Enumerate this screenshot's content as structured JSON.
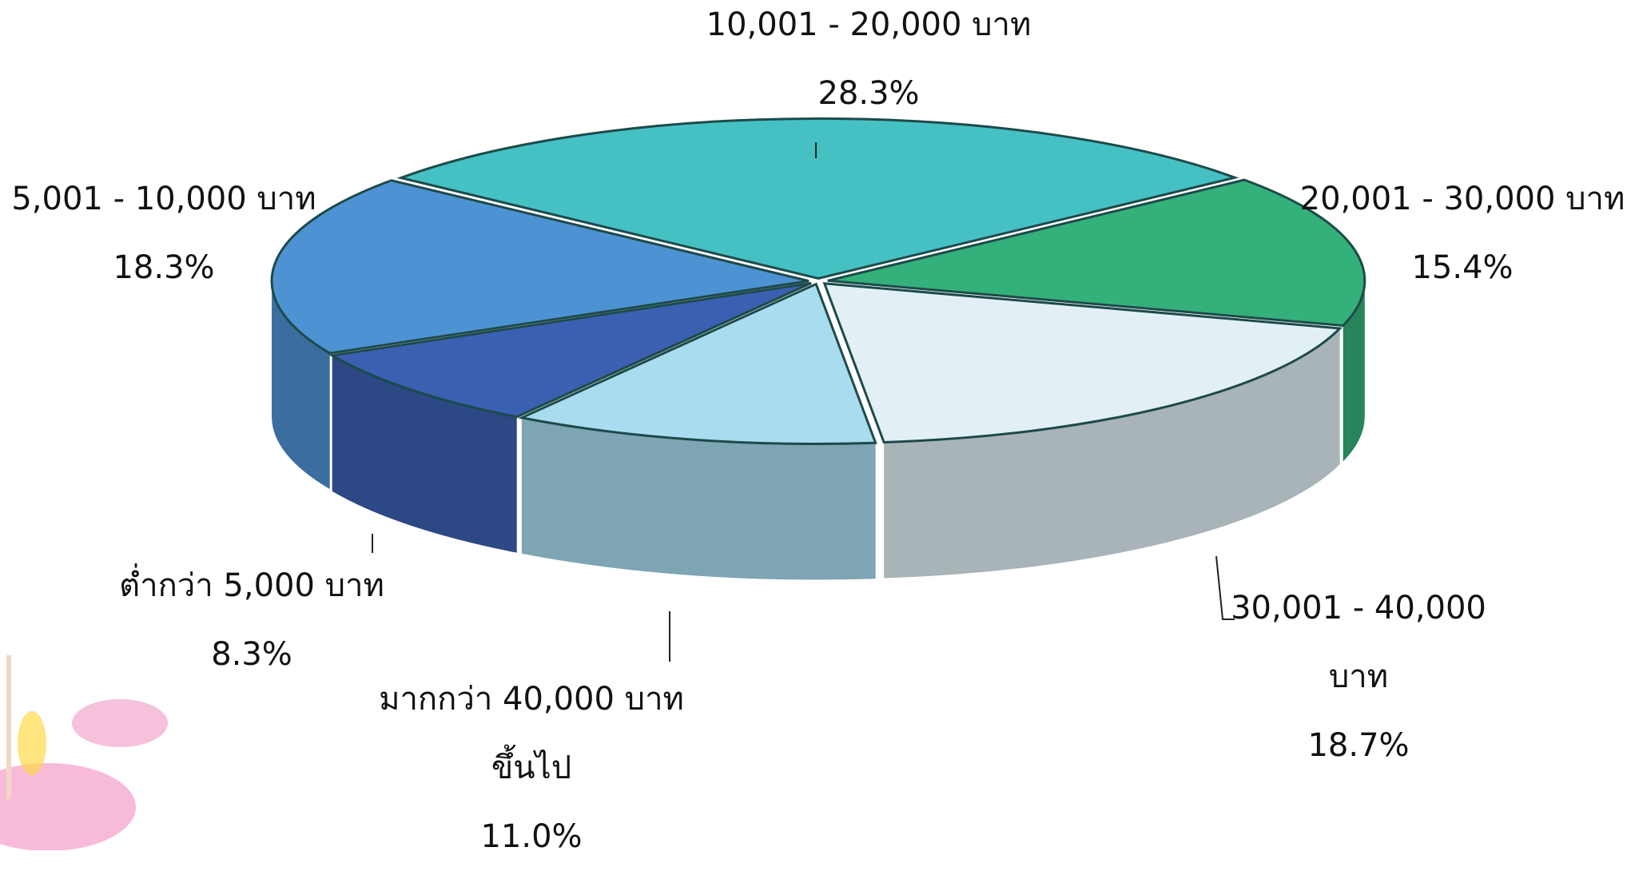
{
  "chart_data": {
    "type": "pie",
    "categories": [
      "10,001 - 20,000 บาท",
      "20,001 - 30,000 บาท",
      "30,001 - 40,000 บาท",
      "มากกว่า 40,000 บาท ขึ้นไป",
      "ต่ำกว่า 5,000 บาท",
      "5,001 - 10,000 บาท"
    ],
    "values": [
      28.3,
      15.4,
      18.7,
      11.0,
      8.3,
      18.3
    ],
    "value_labels": [
      "28.3%",
      "15.4%",
      "18.7%",
      "11.0%",
      "8.3%",
      "18.3%"
    ],
    "colors": [
      "#45c1c4",
      "#34b07a",
      "#e2f0f6",
      "#a9dcef",
      "#3b60b2",
      "#4d93d3"
    ]
  }
}
